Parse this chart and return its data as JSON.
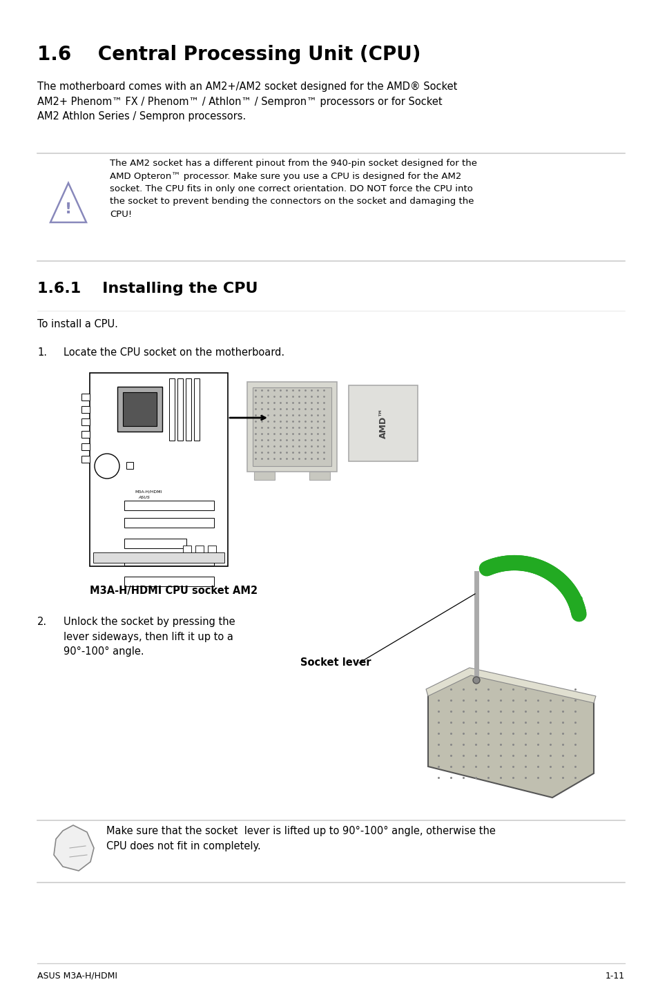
{
  "bg_color": "#ffffff",
  "title": "1.6    Central Processing Unit (CPU)",
  "footer_left": "ASUS M3A-H/HDMI",
  "footer_right": "1-11",
  "section_161_title": "1.6.1    Installing the CPU",
  "para1_text": "The motherboard comes with an AM2+/AM2 socket designed for the AMD® Socket\nAM2+ Phenom™ FX / Phenom™ / Athlon™ / Sempron™ processors or for Socket\nAM2 Athlon Series / Sempron processors.",
  "warning_text": "The AM2 socket has a different pinout from the 940-pin socket designed for the\nAMD Opteron™ processor. Make sure you use a CPU is designed for the AM2\nsocket. The CPU fits in only one correct orientation. DO NOT force the CPU into\nthe socket to prevent bending the connectors on the socket and damaging the\nCPU!",
  "install_intro": "To install a CPU.",
  "step1_label": "1.",
  "step1_text": "Locate the CPU socket on the motherboard.",
  "mobo_caption": "M3A-H/HDMI CPU socket AM2",
  "step2_label": "2.",
  "step2_text": "Unlock the socket by pressing the\nlever sideways, then lift it up to a\n90°-100° angle.",
  "socket_lever_label": "Socket lever",
  "note_text": "Make sure that the socket  lever is lifted up to 90°-100° angle, otherwise the\nCPU does not fit in completely.",
  "body_fontsize": 10.5,
  "title_fontsize": 20,
  "sub_fontsize": 16,
  "caption_fontsize": 10,
  "note_fontsize": 10.5,
  "ml": 0.057,
  "mr": 0.95
}
